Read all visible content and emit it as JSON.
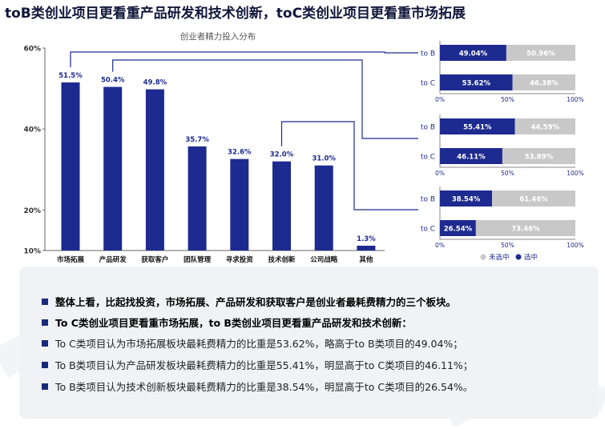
{
  "headline": "toB类创业项目更看重产品研发和技术创新，toC类创业项目更看重市场拓展",
  "colors": {
    "bar": "#1d2a8f",
    "grey": "#c8c8c8",
    "summary_bg": "#f1f2f5",
    "connector": "#1d2a8f"
  },
  "chart_data": [
    {
      "type": "bar",
      "title": "创业者精力投入分布",
      "categories": [
        "市场拓展",
        "产品研发",
        "获取客户",
        "团队管理",
        "寻求投资",
        "技术创新",
        "公司战略",
        "其他"
      ],
      "values": [
        51.5,
        50.4,
        49.8,
        35.7,
        32.6,
        32.0,
        31.0,
        1.3
      ],
      "value_labels": [
        "51.5%",
        "50.4%",
        "49.8%",
        "35.7%",
        "32.6%",
        "32.0%",
        "31.0%",
        "1.3%"
      ],
      "ylim": [
        10,
        60
      ],
      "yticks": [
        10,
        20,
        40,
        60
      ],
      "ytick_labels": [
        "10%",
        "20%",
        "40%",
        "60%"
      ],
      "grid": false
    },
    {
      "type": "bar",
      "stacked": true,
      "orientation": "horizontal",
      "topic": "市场拓展",
      "categories": [
        "to B",
        "to C"
      ],
      "series": [
        {
          "name": "选中",
          "values": [
            49.04,
            53.62
          ],
          "labels": [
            "49.04%",
            "53.62%"
          ]
        },
        {
          "name": "未选中",
          "values": [
            50.96,
            46.38
          ],
          "labels": [
            "50.96%",
            "46.38%"
          ]
        }
      ],
      "xticks": [
        "0%",
        "50%",
        "100%"
      ]
    },
    {
      "type": "bar",
      "stacked": true,
      "orientation": "horizontal",
      "topic": "产品研发",
      "categories": [
        "to B",
        "to C"
      ],
      "series": [
        {
          "name": "选中",
          "values": [
            55.41,
            46.11
          ],
          "labels": [
            "55.41%",
            "46.11%"
          ]
        },
        {
          "name": "未选中",
          "values": [
            44.59,
            53.89
          ],
          "labels": [
            "44.59%",
            "53.89%"
          ]
        }
      ],
      "xticks": [
        "0%",
        "50%",
        "100%"
      ]
    },
    {
      "type": "bar",
      "stacked": true,
      "orientation": "horizontal",
      "topic": "技术创新",
      "categories": [
        "to B",
        "to C"
      ],
      "series": [
        {
          "name": "选中",
          "values": [
            38.54,
            26.54
          ],
          "labels": [
            "38.54%",
            "26.54%"
          ]
        },
        {
          "name": "未选中",
          "values": [
            61.46,
            73.46
          ],
          "labels": [
            "61.46%",
            "73.46%"
          ]
        }
      ],
      "xticks": [
        "0%",
        "50%",
        "100%"
      ],
      "legend": [
        "未选中",
        "选中"
      ],
      "legend_position": "bottom-right"
    }
  ],
  "summary": [
    {
      "text": "整体上看，比起找投资，市场拓展、产品研发和获取客户是创业者最耗费精力的三个板块。",
      "bold": true
    },
    {
      "text": "To C类创业项目更看重市场拓展，to B类创业项目更看重产品研发和技术创新：",
      "bold": true
    },
    {
      "text": "To C类项目认为市场拓展板块最耗费精力的比重是53.62%，略高于to B类项目的49.04%；",
      "bold": false
    },
    {
      "text": "To B类项目认为产品研发板块最耗费精力的比重是55.41%，明显高于to C类项目的46.11%；",
      "bold": false
    },
    {
      "text": "To B类项目认为技术创新板块最耗费精力的比重是38.54%，明显高于to C类项目的26.54%。",
      "bold": false
    }
  ]
}
